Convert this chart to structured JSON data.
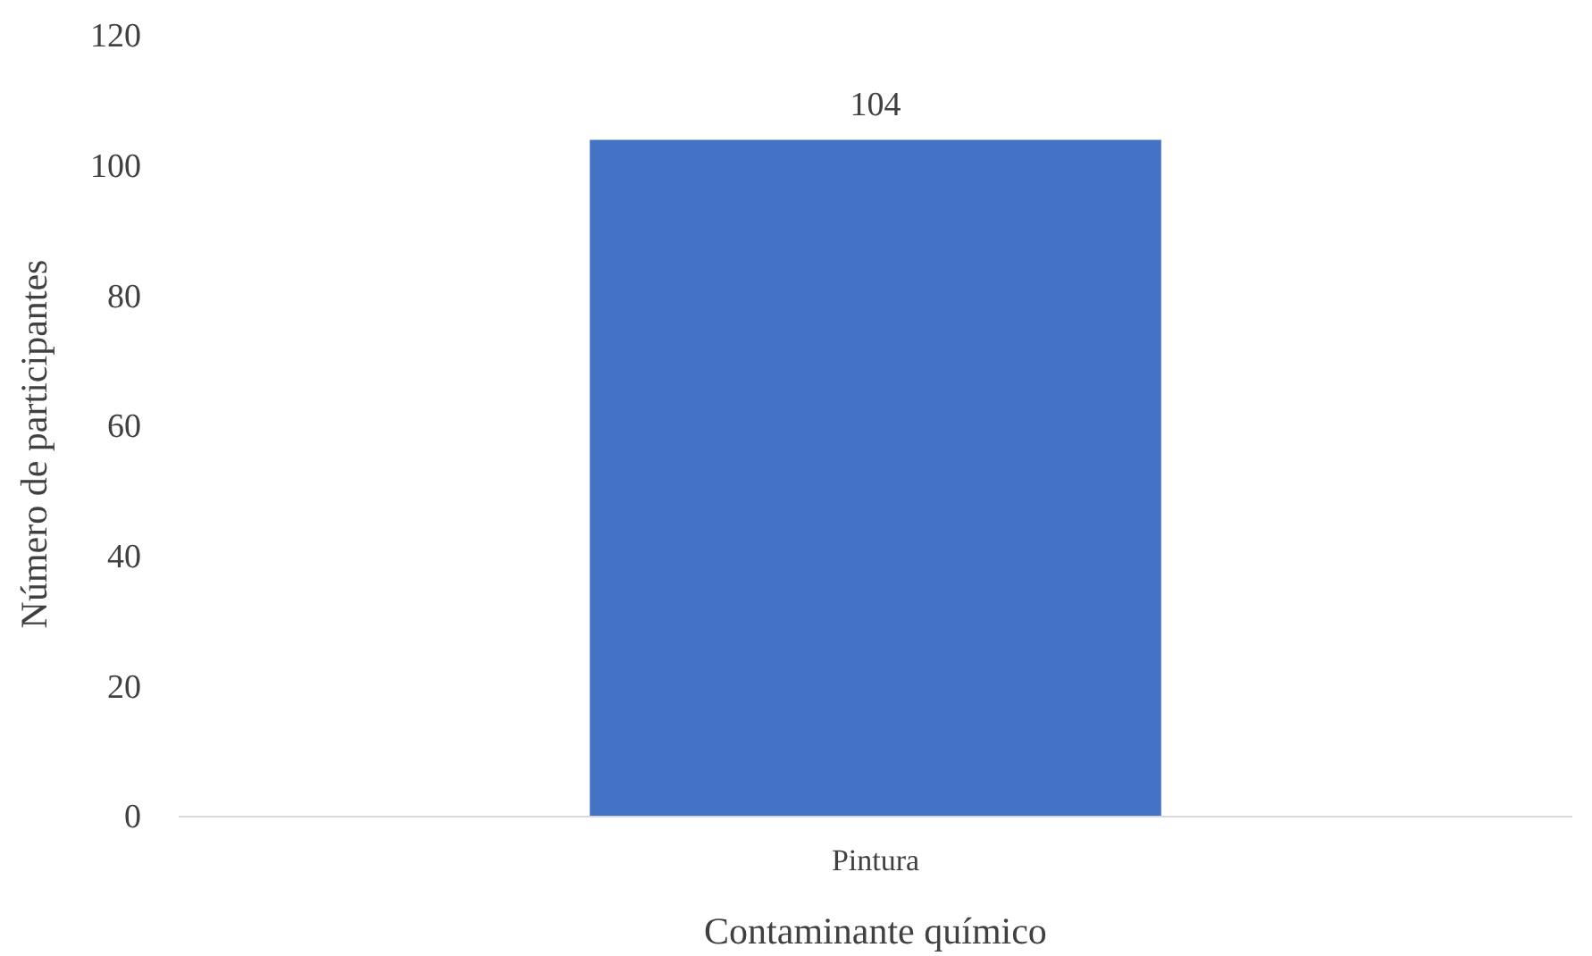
{
  "chart_data": {
    "type": "bar",
    "xlabel": "Contaminante químico",
    "ylabel": "Número de participantes",
    "categories": [
      "Pintura"
    ],
    "values": [
      104
    ],
    "color": "#4472c4",
    "ylim": [
      0,
      120
    ],
    "yticks": [
      0,
      20,
      40,
      60,
      80,
      100,
      120
    ],
    "grid": false,
    "data_labels": true
  }
}
